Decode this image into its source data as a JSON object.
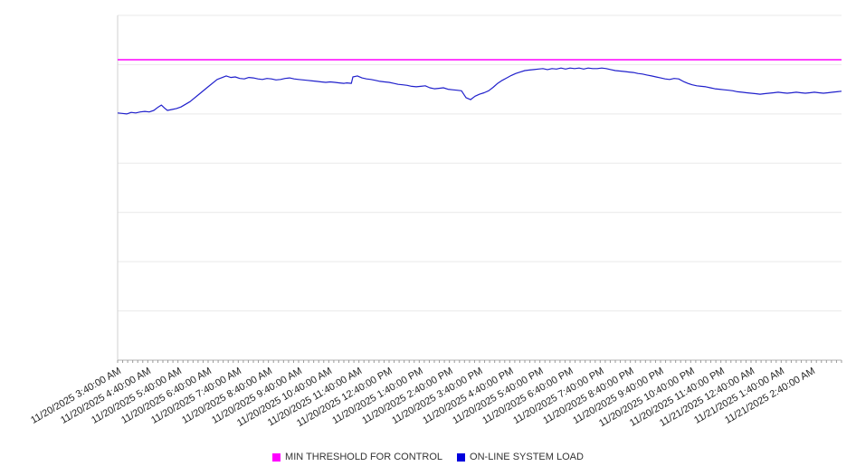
{
  "chart_data": {
    "type": "line",
    "title": "",
    "xlabel": "",
    "ylabel": "",
    "grid": true,
    "grid_color": "#e9e9e9",
    "axis_color": "#b0b0b0",
    "y_axis_line_color": "#d0d0d0",
    "tick_color": "#9a9a9a",
    "label_color": "#1f1f1f",
    "x_axis": {
      "hours_span": 24,
      "minor_tick_minutes": 10,
      "tick_labels": [
        "11/20/2025 3:40:00 AM",
        "11/20/2025 4:40:00 AM",
        "11/20/2025 5:40:00 AM",
        "11/20/2025 6:40:00 AM",
        "11/20/2025 7:40:00 AM",
        "11/20/2025 8:40:00 AM",
        "11/20/2025 9:40:00 AM",
        "11/20/2025 10:40:00 AM",
        "11/20/2025 11:40:00 AM",
        "11/20/2025 12:40:00 PM",
        "11/20/2025 1:40:00 PM",
        "11/20/2025 2:40:00 PM",
        "11/20/2025 3:40:00 PM",
        "11/20/2025 4:40:00 PM",
        "11/20/2025 5:40:00 PM",
        "11/20/2025 6:40:00 PM",
        "11/20/2025 7:40:00 PM",
        "11/20/2025 8:40:00 PM",
        "11/20/2025 9:40:00 PM",
        "11/20/2025 10:40:00 PM",
        "11/20/2025 11:40:00 PM",
        "11/21/2025 12:40:00 AM",
        "11/21/2025 1:40:00 AM",
        "11/21/2025 2:40:00 AM"
      ]
    },
    "y_axis": {
      "ylim": [
        0,
        7
      ],
      "gridline_step": 1,
      "tick_labels_visible": false
    },
    "series": [
      {
        "name": "MIN THRESHOLD FOR CONTROL",
        "type": "threshold-line",
        "color": "#ff00ff",
        "value": 6.1
      },
      {
        "name": "ON-LINE SYSTEM LOAD",
        "type": "line",
        "color": "#2020cc",
        "points": [
          [
            0,
            5.02
          ],
          [
            0.15,
            5.01
          ],
          [
            0.3,
            5.0
          ],
          [
            0.45,
            5.03
          ],
          [
            0.6,
            5.02
          ],
          [
            0.75,
            5.04
          ],
          [
            0.9,
            5.05
          ],
          [
            1.05,
            5.04
          ],
          [
            1.2,
            5.07
          ],
          [
            1.35,
            5.14
          ],
          [
            1.45,
            5.18
          ],
          [
            1.55,
            5.12
          ],
          [
            1.65,
            5.07
          ],
          [
            1.8,
            5.09
          ],
          [
            1.95,
            5.11
          ],
          [
            2.1,
            5.14
          ],
          [
            2.4,
            5.25
          ],
          [
            2.7,
            5.4
          ],
          [
            3,
            5.55
          ],
          [
            3.3,
            5.7
          ],
          [
            3.6,
            5.77
          ],
          [
            3.75,
            5.74
          ],
          [
            3.9,
            5.75
          ],
          [
            4.05,
            5.72
          ],
          [
            4.2,
            5.71
          ],
          [
            4.35,
            5.74
          ],
          [
            4.5,
            5.73
          ],
          [
            4.65,
            5.71
          ],
          [
            4.8,
            5.7
          ],
          [
            4.95,
            5.72
          ],
          [
            5.1,
            5.71
          ],
          [
            5.25,
            5.69
          ],
          [
            5.4,
            5.7
          ],
          [
            5.55,
            5.72
          ],
          [
            5.7,
            5.73
          ],
          [
            5.85,
            5.71
          ],
          [
            6,
            5.7
          ],
          [
            6.15,
            5.69
          ],
          [
            6.3,
            5.68
          ],
          [
            6.45,
            5.67
          ],
          [
            6.6,
            5.66
          ],
          [
            6.75,
            5.65
          ],
          [
            6.9,
            5.64
          ],
          [
            7.05,
            5.65
          ],
          [
            7.2,
            5.64
          ],
          [
            7.35,
            5.63
          ],
          [
            7.5,
            5.62
          ],
          [
            7.6,
            5.63
          ],
          [
            7.75,
            5.62
          ],
          [
            7.8,
            5.75
          ],
          [
            7.95,
            5.77
          ],
          [
            8.1,
            5.73
          ],
          [
            8.25,
            5.71
          ],
          [
            8.4,
            5.7
          ],
          [
            8.55,
            5.68
          ],
          [
            8.7,
            5.66
          ],
          [
            8.85,
            5.65
          ],
          [
            9,
            5.64
          ],
          [
            9.15,
            5.62
          ],
          [
            9.3,
            5.6
          ],
          [
            9.45,
            5.59
          ],
          [
            9.6,
            5.58
          ],
          [
            9.75,
            5.56
          ],
          [
            9.9,
            5.55
          ],
          [
            10.05,
            5.56
          ],
          [
            10.2,
            5.57
          ],
          [
            10.35,
            5.53
          ],
          [
            10.5,
            5.51
          ],
          [
            10.65,
            5.52
          ],
          [
            10.8,
            5.53
          ],
          [
            10.95,
            5.5
          ],
          [
            11.1,
            5.49
          ],
          [
            11.25,
            5.48
          ],
          [
            11.4,
            5.47
          ],
          [
            11.55,
            5.33
          ],
          [
            11.7,
            5.29
          ],
          [
            11.85,
            5.36
          ],
          [
            12,
            5.4
          ],
          [
            12.15,
            5.43
          ],
          [
            12.3,
            5.47
          ],
          [
            12.45,
            5.54
          ],
          [
            12.6,
            5.62
          ],
          [
            12.75,
            5.68
          ],
          [
            12.9,
            5.73
          ],
          [
            13.05,
            5.78
          ],
          [
            13.2,
            5.82
          ],
          [
            13.35,
            5.85
          ],
          [
            13.5,
            5.88
          ],
          [
            13.65,
            5.89
          ],
          [
            13.8,
            5.9
          ],
          [
            13.95,
            5.91
          ],
          [
            14.1,
            5.92
          ],
          [
            14.25,
            5.9
          ],
          [
            14.4,
            5.92
          ],
          [
            14.55,
            5.91
          ],
          [
            14.7,
            5.93
          ],
          [
            14.85,
            5.91
          ],
          [
            15,
            5.93
          ],
          [
            15.15,
            5.92
          ],
          [
            15.3,
            5.93
          ],
          [
            15.45,
            5.91
          ],
          [
            15.6,
            5.93
          ],
          [
            15.75,
            5.92
          ],
          [
            15.9,
            5.92
          ],
          [
            16.05,
            5.93
          ],
          [
            16.2,
            5.92
          ],
          [
            16.35,
            5.9
          ],
          [
            16.5,
            5.88
          ],
          [
            16.65,
            5.87
          ],
          [
            16.8,
            5.86
          ],
          [
            16.95,
            5.85
          ],
          [
            17.1,
            5.84
          ],
          [
            17.25,
            5.82
          ],
          [
            17.4,
            5.81
          ],
          [
            17.55,
            5.79
          ],
          [
            17.7,
            5.77
          ],
          [
            17.85,
            5.75
          ],
          [
            18,
            5.73
          ],
          [
            18.15,
            5.71
          ],
          [
            18.3,
            5.7
          ],
          [
            18.45,
            5.72
          ],
          [
            18.6,
            5.71
          ],
          [
            18.75,
            5.66
          ],
          [
            18.9,
            5.62
          ],
          [
            19.05,
            5.59
          ],
          [
            19.2,
            5.57
          ],
          [
            19.35,
            5.56
          ],
          [
            19.5,
            5.55
          ],
          [
            19.65,
            5.53
          ],
          [
            19.8,
            5.51
          ],
          [
            19.95,
            5.5
          ],
          [
            20.1,
            5.49
          ],
          [
            20.25,
            5.48
          ],
          [
            20.4,
            5.47
          ],
          [
            20.55,
            5.45
          ],
          [
            20.7,
            5.44
          ],
          [
            20.85,
            5.43
          ],
          [
            21,
            5.42
          ],
          [
            21.15,
            5.41
          ],
          [
            21.3,
            5.4
          ],
          [
            21.45,
            5.41
          ],
          [
            21.6,
            5.42
          ],
          [
            21.75,
            5.43
          ],
          [
            21.9,
            5.44
          ],
          [
            22.05,
            5.43
          ],
          [
            22.2,
            5.42
          ],
          [
            22.35,
            5.43
          ],
          [
            22.5,
            5.44
          ],
          [
            22.65,
            5.43
          ],
          [
            22.8,
            5.42
          ],
          [
            22.95,
            5.43
          ],
          [
            23.1,
            5.44
          ],
          [
            23.25,
            5.43
          ],
          [
            23.4,
            5.42
          ],
          [
            23.55,
            5.43
          ],
          [
            23.7,
            5.44
          ],
          [
            23.85,
            5.45
          ],
          [
            24,
            5.46
          ]
        ]
      }
    ],
    "legend": {
      "position": "bottom-center",
      "items": [
        {
          "label": "MIN THRESHOLD FOR CONTROL",
          "color": "#ff00ff"
        },
        {
          "label": "ON-LINE SYSTEM LOAD",
          "color": "#0000dd"
        }
      ]
    }
  }
}
